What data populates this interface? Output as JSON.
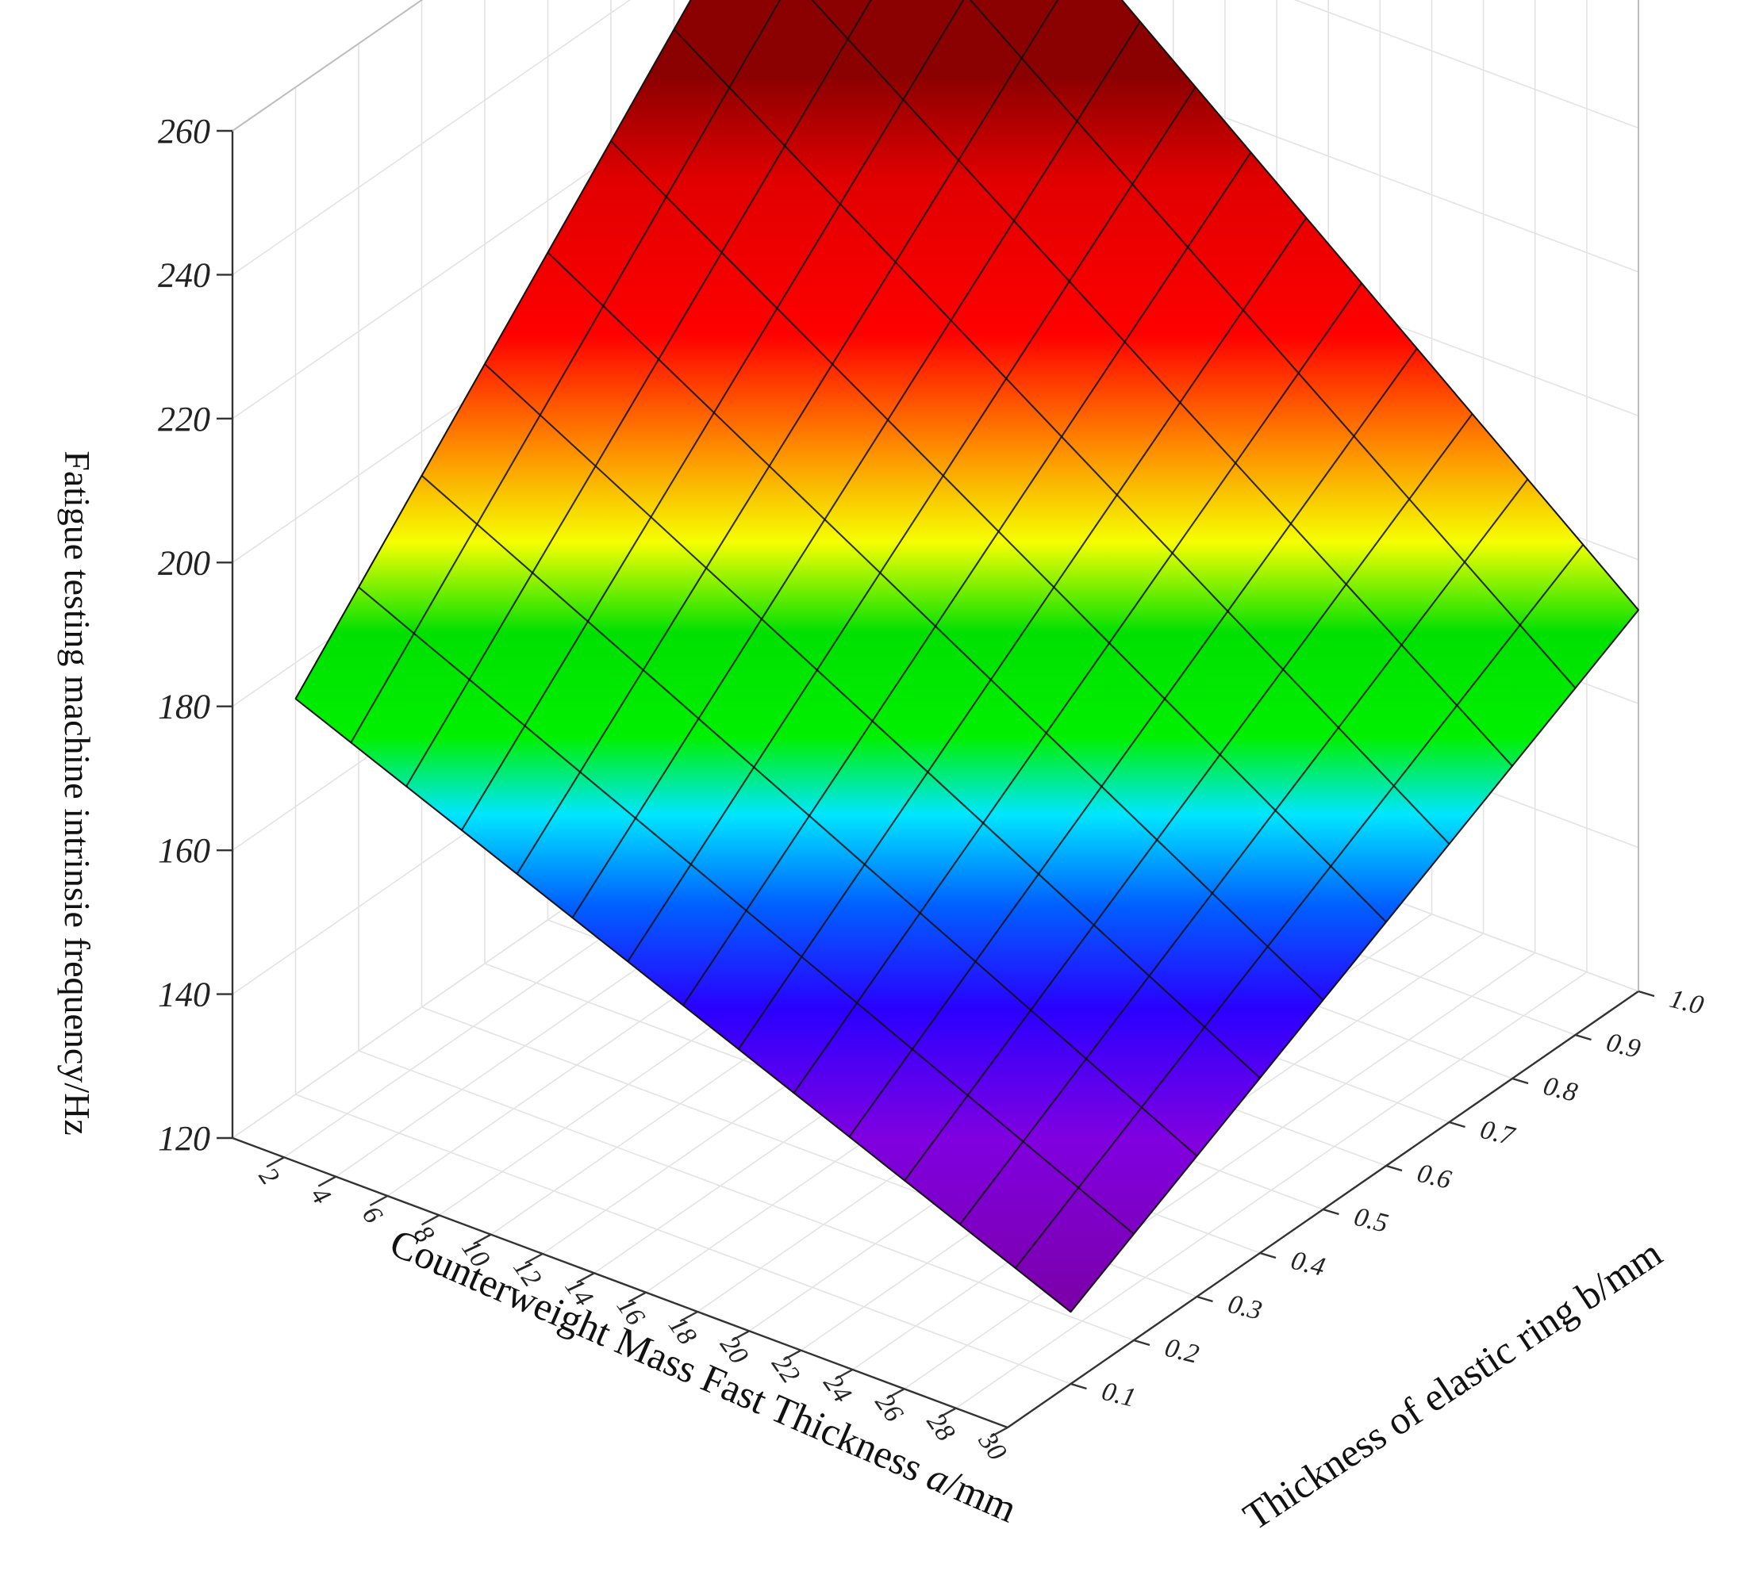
{
  "chart_data": {
    "type": "surface3d",
    "title": "",
    "xlabel_prefix": "Counterweight Mass Fast Thickness ",
    "xlabel_var": "a",
    "xlabel_suffix": "/mm",
    "ylabel": "Thickness of elastic ring b/mm",
    "zlabel": "Fatigue testing machine intrinsie frequency/Hz",
    "x_ticks": [
      "2",
      "4",
      "6",
      "8",
      "10",
      "12",
      "14",
      "16",
      "18",
      "20",
      "22",
      "24",
      "26",
      "28",
      "30"
    ],
    "y_ticks": [
      "0.1",
      "0.2",
      "0.3",
      "0.4",
      "0.5",
      "0.6",
      "0.7",
      "0.8",
      "0.9",
      "1.0"
    ],
    "z_ticks": [
      "120",
      "140",
      "160",
      "180",
      "200",
      "220",
      "240",
      "260"
    ],
    "xlim": [
      0,
      30
    ],
    "ylim": [
      0,
      1.0
    ],
    "zlim": [
      120,
      260
    ],
    "x": [
      0,
      30
    ],
    "y": [
      0.1,
      1.0
    ],
    "z_corners": {
      "x0_y0.1": 175,
      "x0_y1.0": 260,
      "x30_y0.1": 130,
      "x30_y1.0": 173
    },
    "grid": true,
    "colormap": [
      "#7a0093",
      "#2a00ff",
      "#00e6ff",
      "#00f000",
      "#f5ff00",
      "#ff8000",
      "#ff0000",
      "#8b0000"
    ]
  }
}
